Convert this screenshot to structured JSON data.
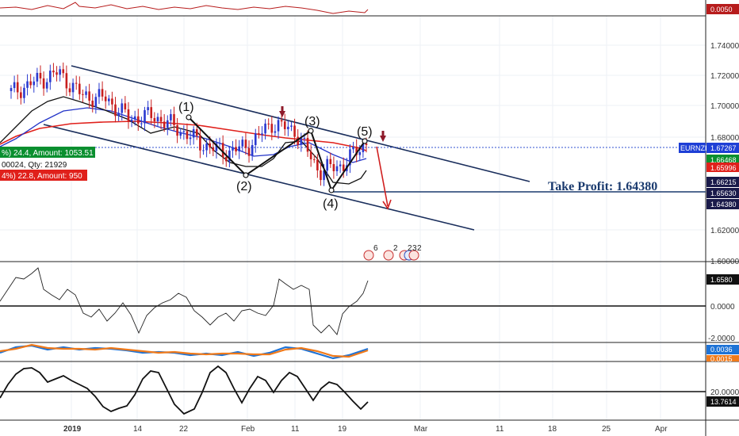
{
  "symbol": "EURNZD",
  "take_profit": {
    "label": "Take Profit: 1.64380",
    "price": 1.6438
  },
  "order_labels": {
    "buy": "%) 24.4, Amount: 1053.51",
    "qty": "00024, Qty: 21929",
    "sell": "4%) 22.8, Amount: 950"
  },
  "wave_labels": [
    "(1)",
    "(2)",
    "(3)",
    "(4)",
    "(5)"
  ],
  "event_badges": [
    "6",
    "2",
    "2",
    "3",
    "2"
  ],
  "price_axis": {
    "ticks": [
      "1.74000",
      "1.72000",
      "1.70000",
      "1.68000",
      "1.62000",
      "1.60000"
    ],
    "tags": [
      {
        "text": "EURNZD",
        "value": "1.67267",
        "color": "#1e3fd6"
      },
      {
        "text": "",
        "value": "1.66468",
        "color": "#0a8f2f"
      },
      {
        "text": "",
        "value": "1.65996",
        "color": "#e0201b"
      },
      {
        "text": "",
        "value": "1.66215",
        "color": "#1a1a4a"
      },
      {
        "text": "",
        "value": "1.65630",
        "color": "#1a1a4a"
      },
      {
        "text": "",
        "value": "1.64380",
        "color": "#1a1a4a"
      }
    ]
  },
  "top_indicator": {
    "value": "0.0050",
    "color": "#b71c1c"
  },
  "osc1": {
    "ticks": [
      "0.0000",
      "-2.0000"
    ],
    "value": "1.6580"
  },
  "osc2": {
    "values": [
      "0.0036",
      "0.0015"
    ],
    "colors": [
      "#1e73d6",
      "#f07a1a"
    ]
  },
  "osc3": {
    "ticks": [
      "20.0000"
    ],
    "value": "13.7614"
  },
  "time_axis": [
    "2019",
    "14",
    "22",
    "Feb",
    "11",
    "19",
    "Mar",
    "11",
    "18",
    "25",
    "Apr"
  ],
  "chart_data": {
    "type": "line",
    "title": "",
    "symbol": "EURNZD",
    "ylim": [
      1.595,
      1.755
    ],
    "series": [
      {
        "name": "EURNZD",
        "x": [
          "2019-01-01",
          "2019-01-04",
          "2019-01-08",
          "2019-01-11",
          "2019-01-15",
          "2019-01-18",
          "2019-01-22",
          "2019-01-25",
          "2019-01-29",
          "2019-02-01",
          "2019-02-05",
          "2019-02-08",
          "2019-02-12",
          "2019-02-15",
          "2019-02-19",
          "2019-02-22"
        ],
        "values": [
          1.705,
          1.712,
          1.718,
          1.703,
          1.701,
          1.688,
          1.69,
          1.682,
          1.672,
          1.666,
          1.67,
          1.685,
          1.68,
          1.654,
          1.658,
          1.673
        ]
      }
    ],
    "take_profit": 1.6438,
    "current_price": 1.67267
  }
}
